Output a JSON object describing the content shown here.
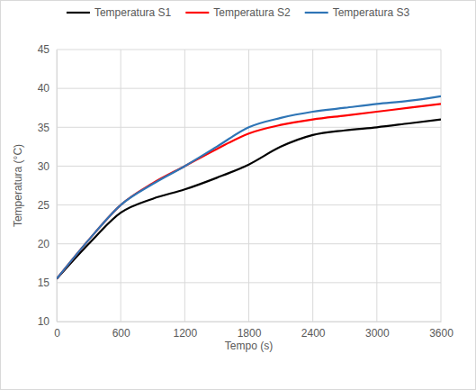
{
  "chart_data": {
    "type": "line",
    "x_label": "Tempo (s)",
    "y_label": "Temperatura (°C)",
    "x": [
      0,
      300,
      600,
      900,
      1200,
      1500,
      1800,
      2100,
      2400,
      2700,
      3000,
      3300,
      3600
    ],
    "series": [
      {
        "name": "Temperatura S1",
        "color": "#000000",
        "values": [
          15.5,
          20,
          24,
          25.8,
          27,
          28.5,
          30.2,
          32.5,
          34,
          34.6,
          35,
          35.5,
          36
        ]
      },
      {
        "name": "Temperatura S2",
        "color": "#ff0000",
        "values": [
          15.5,
          20.5,
          25,
          27.8,
          30,
          32.2,
          34.2,
          35.3,
          36,
          36.5,
          37,
          37.5,
          38
        ]
      },
      {
        "name": "Temperatura S3",
        "color": "#2e75b6",
        "values": [
          15.5,
          20.5,
          25,
          27.7,
          30,
          32.5,
          35,
          36.2,
          37,
          37.5,
          38,
          38.4,
          39
        ]
      }
    ],
    "xlim": [
      0,
      3600
    ],
    "xticks": [
      0,
      600,
      1200,
      1800,
      2400,
      3000,
      3600
    ],
    "ylim": [
      10,
      45
    ],
    "yticks": [
      10,
      15,
      20,
      25,
      30,
      35,
      40,
      45
    ],
    "grid": true,
    "legend": "top"
  }
}
